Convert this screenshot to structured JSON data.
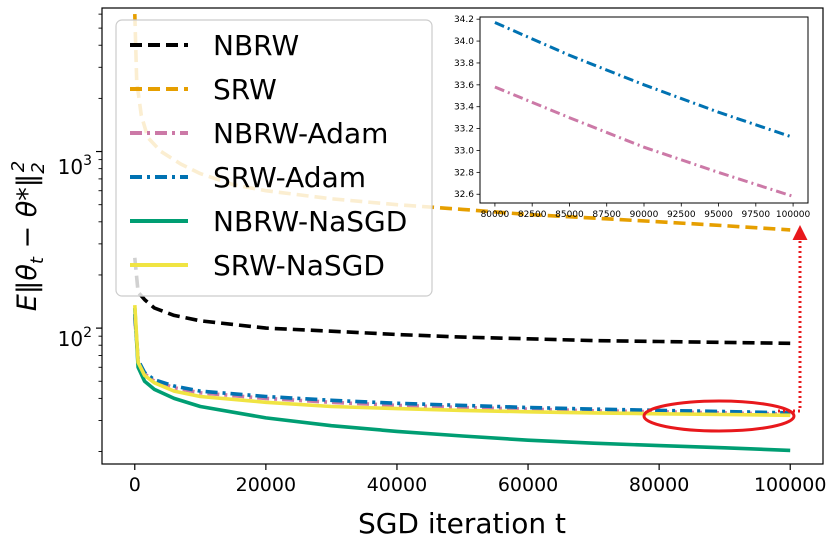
{
  "chart_data": [
    {
      "type": "line",
      "yscale": "log",
      "xlabel": "SGD iteration t",
      "ylabel_parts": {
        "e": "E",
        "th1": "θ",
        "sub_t": "t",
        "minus": " − θ",
        "star": "*",
        "sub_2": "2",
        "sup_2": "2"
      },
      "xlim": [
        -5000,
        105000
      ],
      "ylim": [
        17,
        6500
      ],
      "xticks": [
        0,
        20000,
        40000,
        60000,
        80000,
        100000
      ],
      "xtick_labels": [
        "0",
        "20000",
        "40000",
        "60000",
        "80000",
        "100000"
      ],
      "yticks": [
        100,
        1000
      ],
      "ytick_labels": {
        "base1": "10",
        "exp1": "2",
        "base2": "10",
        "exp2": "3"
      },
      "legend_position": "upper left",
      "series": [
        {
          "name": "NBRW",
          "color": "#000000",
          "dash": "dashed",
          "x": [
            0,
            500,
            1500,
            3000,
            6000,
            10000,
            20000,
            30000,
            40000,
            50000,
            60000,
            70000,
            80000,
            90000,
            100000
          ],
          "y": [
            250,
            160,
            145,
            130,
            118,
            110,
            100,
            96,
            92,
            89,
            87,
            85,
            84,
            83,
            82
          ]
        },
        {
          "name": "SRW",
          "color": "#e69f00",
          "dash": "dashed",
          "x": [
            0,
            300,
            1000,
            2000,
            4000,
            7000,
            10000,
            15000,
            20000,
            30000,
            40000,
            50000,
            60000,
            70000,
            80000,
            90000,
            100000
          ],
          "y": [
            6000,
            2500,
            1600,
            1200,
            1000,
            850,
            750,
            650,
            600,
            540,
            500,
            470,
            440,
            420,
            400,
            380,
            360
          ]
        },
        {
          "name": "NBRW-Adam",
          "color": "#cc79a7",
          "dash": "dashdot",
          "x": [
            0,
            500,
            1500,
            3000,
            6000,
            10000,
            20000,
            30000,
            40000,
            50000,
            60000,
            70000,
            80000,
            90000,
            100000
          ],
          "y": [
            115,
            65,
            55,
            50,
            46,
            43,
            40,
            38,
            36.5,
            35.5,
            34.8,
            34,
            33.6,
            33.1,
            32.6
          ]
        },
        {
          "name": "SRW-Adam",
          "color": "#0072b2",
          "dash": "dashdot",
          "x": [
            0,
            500,
            1500,
            3000,
            6000,
            10000,
            20000,
            30000,
            40000,
            50000,
            60000,
            70000,
            80000,
            90000,
            100000
          ],
          "y": [
            120,
            66,
            56,
            51,
            47,
            44,
            41,
            39,
            37.5,
            36.5,
            35.5,
            34.8,
            34.2,
            33.7,
            33.1
          ]
        },
        {
          "name": "NBRW-NaSGD",
          "color": "#009e73",
          "dash": "solid",
          "x": [
            0,
            500,
            1500,
            3000,
            6000,
            10000,
            20000,
            30000,
            40000,
            50000,
            60000,
            70000,
            80000,
            90000,
            100000
          ],
          "y": [
            130,
            60,
            50,
            45,
            40,
            36,
            31,
            28,
            26,
            24.5,
            23.2,
            22.3,
            21.6,
            21,
            20.3
          ]
        },
        {
          "name": "SRW-NaSGD",
          "color": "#f0e442",
          "dash": "solid",
          "x": [
            0,
            500,
            1500,
            3000,
            6000,
            10000,
            20000,
            30000,
            40000,
            50000,
            60000,
            70000,
            80000,
            90000,
            100000
          ],
          "y": [
            135,
            64,
            54,
            49,
            44,
            41,
            38,
            36,
            35,
            34.2,
            33.6,
            33.1,
            32.7,
            32.4,
            32.1
          ]
        }
      ],
      "annotation": {
        "type": "ellipse-with-arrow",
        "color": "#e8181c",
        "target": "80000-100000 region",
        "arrow_to": "inset"
      }
    },
    {
      "type": "line",
      "role": "inset",
      "xlim": [
        79000,
        101000
      ],
      "ylim": [
        32.52,
        34.22
      ],
      "xticks": [
        80000,
        82500,
        85000,
        87500,
        90000,
        92500,
        95000,
        97500,
        100000
      ],
      "xtick_labels": [
        "80000",
        "82500",
        "85000",
        "87500",
        "90000",
        "92500",
        "95000",
        "97500",
        "100000"
      ],
      "yticks": [
        32.6,
        32.8,
        33.0,
        33.2,
        33.4,
        33.6,
        33.8,
        34.0,
        34.2
      ],
      "ytick_labels": [
        "32.6",
        "32.8",
        "33.0",
        "33.2",
        "33.4",
        "33.6",
        "33.8",
        "34.0",
        "34.2"
      ],
      "series": [
        {
          "name": "SRW-Adam",
          "color": "#0072b2",
          "dash": "dashdot",
          "x": [
            80000,
            85000,
            90000,
            95000,
            100000
          ],
          "y": [
            34.17,
            33.87,
            33.6,
            33.35,
            33.12
          ]
        },
        {
          "name": "NBRW-Adam",
          "color": "#cc79a7",
          "dash": "dashdot",
          "x": [
            80000,
            85000,
            90000,
            95000,
            100000
          ],
          "y": [
            33.58,
            33.3,
            33.03,
            32.8,
            32.58
          ]
        }
      ]
    }
  ]
}
